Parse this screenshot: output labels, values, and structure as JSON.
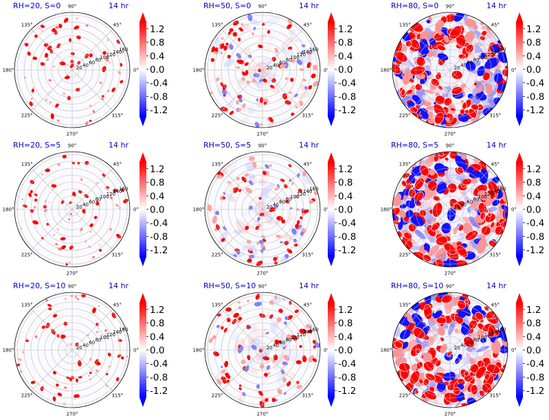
{
  "figure": {
    "text_color": "#0000cc",
    "time_label": "14 hr",
    "colormap": "bwr",
    "colormap_colors": [
      "#0000ff",
      "#ffffff",
      "#ff0000"
    ]
  },
  "chart_data": {
    "type": "heatmap",
    "projection": "polar",
    "rows": [
      "S=0",
      "S=5",
      "S=10"
    ],
    "cols": [
      "RH=20",
      "RH=50",
      "RH=80"
    ],
    "angular_ticks": [
      "0°",
      "45°",
      "90°",
      "135°",
      "180°",
      "225°",
      "270°",
      "315°"
    ],
    "radial_ticks": [
      "20",
      "40",
      "60",
      "80",
      "100",
      "120",
      "140",
      "160"
    ],
    "colorbar": {
      "ticks": [
        "-1.2",
        "-0.8",
        "-0.4",
        "0.0",
        "0.4",
        "0.8",
        "1.2"
      ],
      "range": [
        -1.4,
        1.4
      ],
      "extend": "both"
    },
    "panels": [
      {
        "title": "RH=20, S=0",
        "time": "14 hr",
        "rh": 20,
        "s": 0
      },
      {
        "title": "RH=50, S=0",
        "time": "14 hr",
        "rh": 50,
        "s": 0
      },
      {
        "title": "RH=80, S=0",
        "time": "14 hr",
        "rh": 80,
        "s": 0
      },
      {
        "title": "RH=20, S=5",
        "time": "14 hr",
        "rh": 20,
        "s": 5
      },
      {
        "title": "RH=50, S=5",
        "time": "14 hr",
        "rh": 50,
        "s": 5
      },
      {
        "title": "RH=80, S=5",
        "time": "14 hr",
        "rh": 80,
        "s": 5
      },
      {
        "title": "RH=20, S=10",
        "time": "14 hr",
        "rh": 20,
        "s": 10
      },
      {
        "title": "RH=50, S=10",
        "time": "14 hr",
        "rh": 50,
        "s": 10
      },
      {
        "title": "RH=80, S=10",
        "time": "14 hr",
        "rh": 80,
        "s": 10
      }
    ]
  }
}
